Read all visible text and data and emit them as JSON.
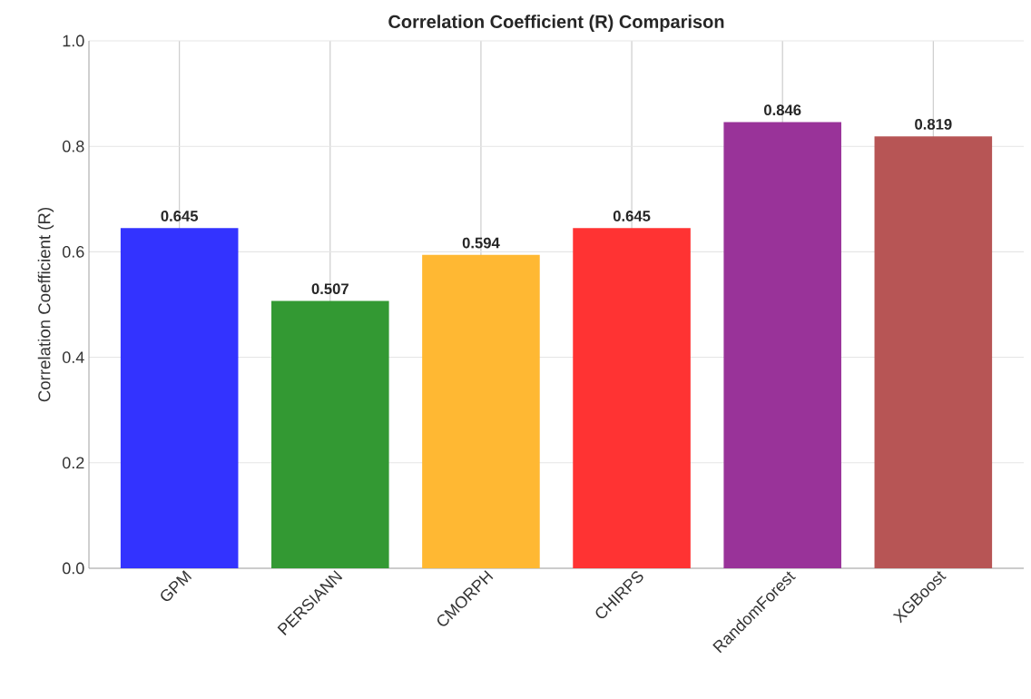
{
  "chart_data": {
    "type": "bar",
    "title": "Correlation Coefficient (R) Comparison",
    "ylabel": "Correlation Coefficient (R)",
    "categories": [
      "GPM",
      "PERSIANN",
      "CMORPH",
      "CHIRPS",
      "RandomForest",
      "XGBoost"
    ],
    "values": [
      0.645,
      0.507,
      0.594,
      0.645,
      0.846,
      0.819
    ],
    "colors": [
      "#3333ff",
      "#339933",
      "#ffb833",
      "#ff3333",
      "#993399",
      "#b75555"
    ],
    "value_labels": [
      "0.645",
      "0.507",
      "0.594",
      "0.645",
      "0.846",
      "0.819"
    ],
    "ylim": [
      0,
      1.0
    ],
    "yticks": [
      {
        "value": 0,
        "label": "0.0"
      },
      0.2,
      0.4,
      0.6,
      0.8,
      {
        "value": 1,
        "label": "1.0"
      }
    ],
    "grid": true
  }
}
